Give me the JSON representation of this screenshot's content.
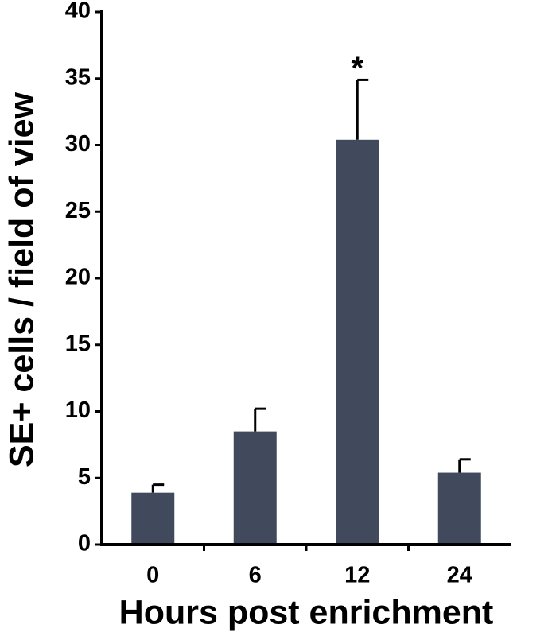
{
  "chart_data": {
    "type": "bar",
    "x_label": "Hours post enrichment",
    "y_label": "SE+ cells / field of view",
    "categories": [
      "0",
      "6",
      "12",
      "24"
    ],
    "values": [
      3.9,
      8.5,
      30.4,
      5.4
    ],
    "errors": [
      0.6,
      1.7,
      4.5,
      1.0
    ],
    "color": "#414a5c",
    "ylim": [
      0,
      40
    ],
    "yticks": [
      0,
      5,
      10,
      15,
      20,
      25,
      30,
      35,
      40
    ],
    "annotations": [
      {
        "text": "*",
        "category_index": 2
      }
    ]
  }
}
